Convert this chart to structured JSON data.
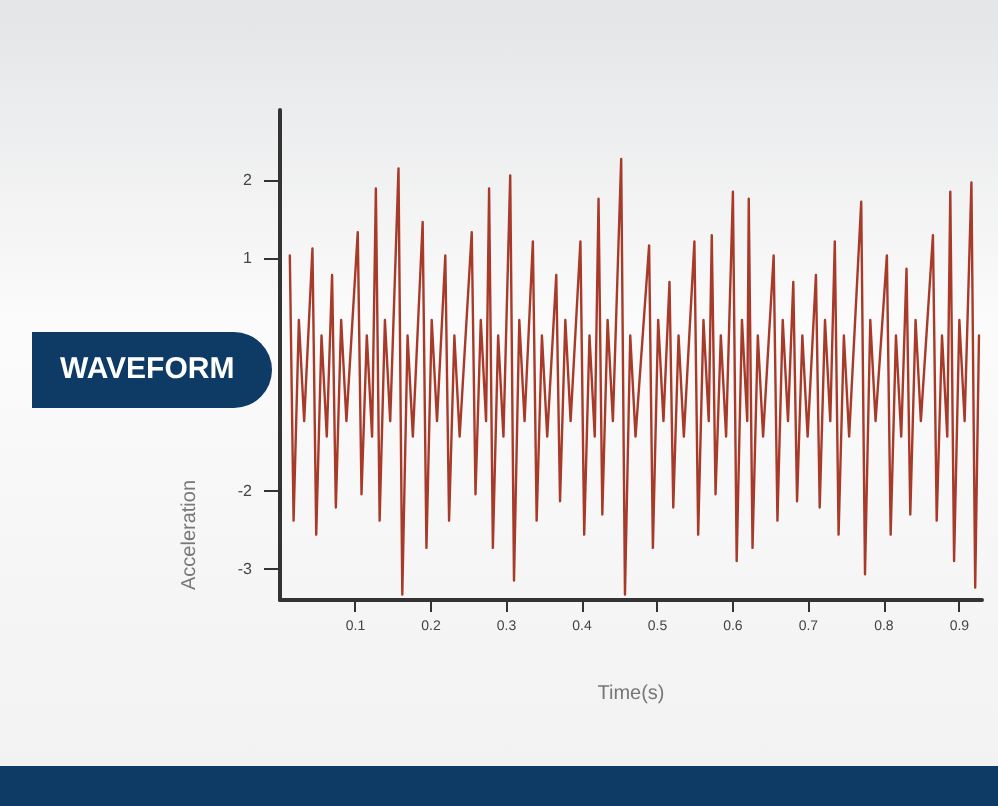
{
  "chart_data": {
    "type": "line",
    "xlabel": "Time(s)",
    "ylabel": "Acceleration",
    "annotations": [
      "WAVEFORM"
    ],
    "xlim": [
      0,
      0.93
    ],
    "xticks": [
      0.1,
      0.2,
      0.3,
      0.4,
      0.5,
      0.6,
      0.7,
      0.8,
      0.9
    ],
    "ylim": [
      -3.4,
      2.9
    ],
    "yticks": [
      -3,
      -2,
      1,
      2
    ],
    "grid": false,
    "marker": "none",
    "line_style": "solid",
    "series": [
      {
        "color": "#a83a2a",
        "x": [
          0.013,
          0.018,
          0.025,
          0.032,
          0.043,
          0.048,
          0.055,
          0.062,
          0.069,
          0.074,
          0.081,
          0.088,
          0.103,
          0.108,
          0.115,
          0.122,
          0.127,
          0.132,
          0.139,
          0.146,
          0.157,
          0.162,
          0.169,
          0.176,
          0.189,
          0.194,
          0.201,
          0.208,
          0.219,
          0.224,
          0.231,
          0.238,
          0.254,
          0.259,
          0.266,
          0.273,
          0.277,
          0.282,
          0.289,
          0.296,
          0.305,
          0.31,
          0.317,
          0.324,
          0.335,
          0.34,
          0.347,
          0.354,
          0.366,
          0.371,
          0.378,
          0.385,
          0.398,
          0.403,
          0.41,
          0.417,
          0.422,
          0.427,
          0.434,
          0.441,
          0.452,
          0.457,
          0.464,
          0.471,
          0.489,
          0.494,
          0.501,
          0.508,
          0.516,
          0.521,
          0.528,
          0.535,
          0.549,
          0.554,
          0.561,
          0.568,
          0.572,
          0.577,
          0.584,
          0.591,
          0.6,
          0.605,
          0.612,
          0.619,
          0.621,
          0.626,
          0.633,
          0.64,
          0.654,
          0.659,
          0.666,
          0.673,
          0.68,
          0.685,
          0.692,
          0.699,
          0.71,
          0.715,
          0.722,
          0.729,
          0.735,
          0.74,
          0.747,
          0.754,
          0.77,
          0.775,
          0.782,
          0.789,
          0.804,
          0.809,
          0.816,
          0.823,
          0.83,
          0.835,
          0.842,
          0.849,
          0.865,
          0.87,
          0.877,
          0.884,
          0.888,
          0.893,
          0.9,
          0.907,
          0.916,
          0.921,
          0.926
        ],
        "values": [
          1.03,
          -2.38,
          0.2,
          -1.1,
          1.12,
          -2.56,
          0.0,
          -1.3,
          0.78,
          -2.21,
          0.2,
          -1.1,
          1.33,
          -2.04,
          0.0,
          -1.3,
          1.89,
          -2.38,
          0.2,
          -1.1,
          2.15,
          -3.33,
          0.0,
          -1.3,
          1.46,
          -2.73,
          0.2,
          -1.1,
          1.03,
          -2.38,
          0.0,
          -1.3,
          1.33,
          -2.04,
          0.2,
          -1.1,
          1.89,
          -2.73,
          0.0,
          -1.3,
          2.06,
          -3.15,
          0.2,
          -1.1,
          1.21,
          -2.38,
          0.0,
          -1.3,
          0.78,
          -2.13,
          0.2,
          -1.1,
          1.21,
          -2.56,
          0.0,
          -1.3,
          1.76,
          -2.3,
          0.2,
          -1.1,
          2.27,
          -3.33,
          0.0,
          -1.3,
          1.16,
          -2.73,
          0.2,
          -1.1,
          0.69,
          -2.21,
          0.0,
          -1.3,
          1.21,
          -2.56,
          0.2,
          -1.1,
          1.29,
          -2.04,
          0.0,
          -1.3,
          1.85,
          -2.9,
          0.2,
          -1.1,
          1.76,
          -2.73,
          0.0,
          -1.3,
          1.03,
          -2.38,
          0.2,
          -1.1,
          0.69,
          -2.13,
          0.0,
          -1.3,
          0.78,
          -2.21,
          0.2,
          -1.1,
          1.21,
          -2.56,
          0.0,
          -1.3,
          1.72,
          -3.07,
          0.2,
          -1.1,
          1.03,
          -2.56,
          0.0,
          -1.3,
          0.86,
          -2.3,
          0.2,
          -1.1,
          1.29,
          -2.38,
          0.0,
          -1.3,
          1.85,
          -2.9,
          0.2,
          -1.1,
          1.97,
          -3.24,
          0.0
        ]
      }
    ]
  }
}
